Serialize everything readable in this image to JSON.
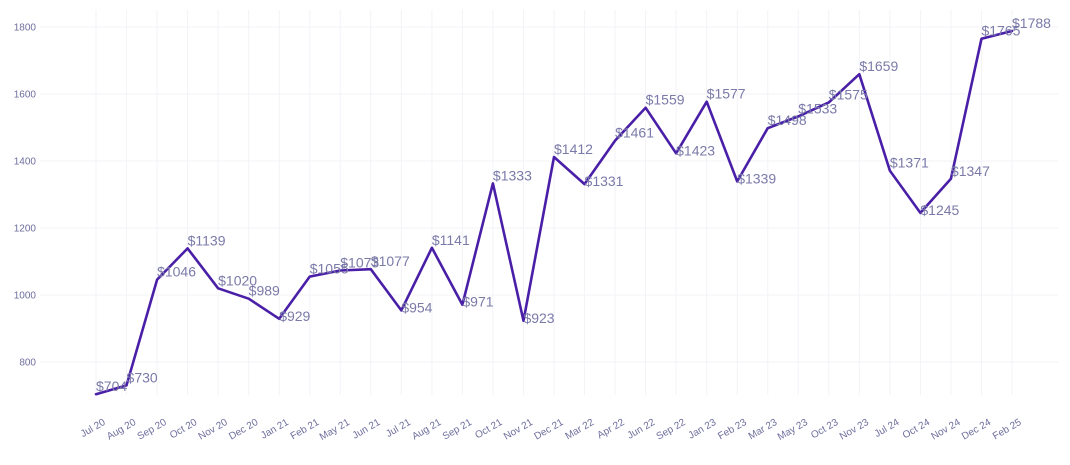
{
  "chart_data": {
    "type": "line",
    "title": "",
    "xlabel": "",
    "ylabel": "",
    "ylim": [
      680,
      1820
    ],
    "yticks": [
      800,
      1000,
      1200,
      1400,
      1600,
      1800
    ],
    "grid": true,
    "legend": "none",
    "line_color": "#4a1fa8",
    "label_color": "#7a7aa8",
    "categories": [
      "Jul 20",
      "Aug 20",
      "Sep 20",
      "Oct 20",
      "Nov 20",
      "Dec 20",
      "Jan 21",
      "Feb 21",
      "May 21",
      "Jun 21",
      "Jul 21",
      "Aug 21",
      "Sep 21",
      "Oct 21",
      "Nov 21",
      "Dec 21",
      "Mar 22",
      "Apr 22",
      "Jun 22",
      "Sep 22",
      "Jan 23",
      "Feb 23",
      "Mar 23",
      "May 23",
      "Oct 23",
      "Nov 23",
      "Jul 24",
      "Oct 24",
      "Nov 24",
      "Dec 24",
      "Feb 25"
    ],
    "values": [
      704,
      730,
      1046,
      1139,
      1020,
      989,
      929,
      1055,
      1073,
      1077,
      954,
      1141,
      971,
      1333,
      923,
      1412,
      1331,
      1461,
      1559,
      1423,
      1577,
      1339,
      1498,
      1533,
      1575,
      1659,
      1371,
      1245,
      1347,
      1765,
      1788
    ],
    "labels": [
      "$704",
      "$730",
      "$1046",
      "$1139",
      "$1020",
      "$989",
      "$929",
      "$1055",
      "$1073",
      "$1077",
      "$954",
      "$1141",
      "$971",
      "$1333",
      "$923",
      "$1412",
      "$1331",
      "$1461",
      "$1559",
      "$1423",
      "$1577",
      "$1339",
      "$1498",
      "$1533",
      "$1575",
      "$1659",
      "$1371",
      "$1245",
      "$1347",
      "$1765",
      "$1788"
    ]
  }
}
